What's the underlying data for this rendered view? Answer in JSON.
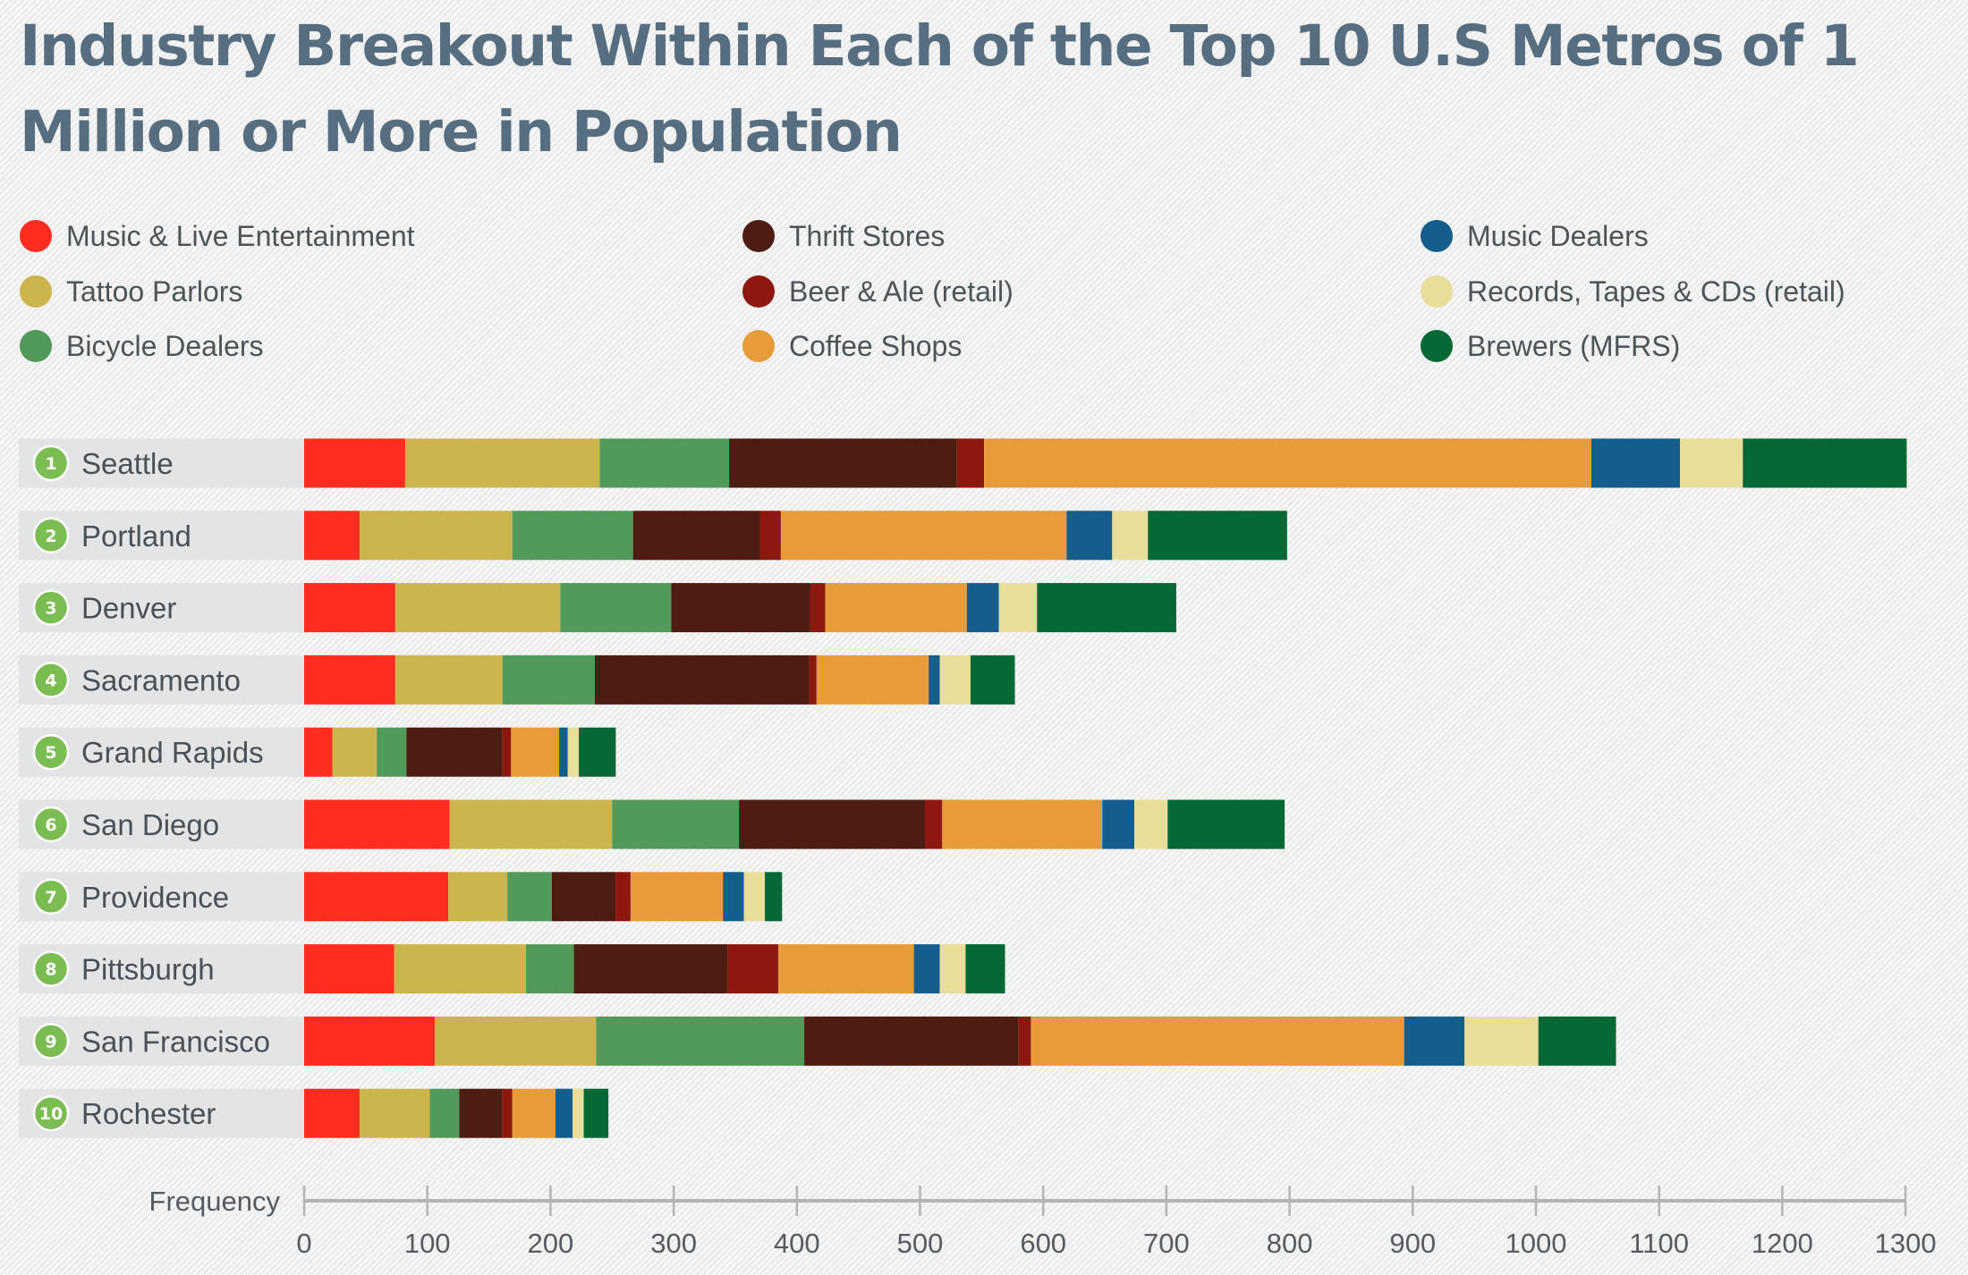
{
  "chart_data": {
    "type": "bar",
    "orientation": "horizontal",
    "stacked": true,
    "title": "Industry Breakout Within Each of the Top 10 U.S Metros of 1 Million or More in Population",
    "xlabel": "Frequency",
    "ylabel": "",
    "xlim": [
      0,
      1300
    ],
    "xticks": [
      0,
      100,
      200,
      300,
      400,
      500,
      600,
      700,
      800,
      900,
      1000,
      1100,
      1200,
      1300
    ],
    "grid": false,
    "legend_position": "top",
    "categories": [
      "Seattle",
      "Portland",
      "Denver",
      "Sacramento",
      "Grand Rapids",
      "San Diego",
      "Providence",
      "Pittsburgh",
      "San Francisco",
      "Rochester"
    ],
    "ranks": [
      "1",
      "2",
      "3",
      "4",
      "5",
      "6",
      "7",
      "8",
      "9",
      "10"
    ],
    "series": [
      {
        "name": "Music & Live Entertainment",
        "color": "#ff2d20",
        "values": [
          82,
          45,
          74,
          74,
          23,
          118,
          117,
          73,
          106,
          45
        ]
      },
      {
        "name": "Tattoo Parlors",
        "color": "#cdb54d",
        "values": [
          158,
          124,
          134,
          87,
          36,
          132,
          48,
          107,
          131,
          57
        ]
      },
      {
        "name": "Bicycle Dealers",
        "color": "#529a5a",
        "values": [
          105,
          98,
          90,
          75,
          24,
          103,
          36,
          39,
          169,
          24
        ]
      },
      {
        "name": "Thrift Stores",
        "color": "#4c1d10",
        "values": [
          185,
          103,
          113,
          174,
          78,
          151,
          52,
          125,
          174,
          35
        ]
      },
      {
        "name": "Beer & Ale (retail)",
        "color": "#8c1810",
        "values": [
          22,
          17,
          12,
          6,
          7,
          14,
          12,
          41,
          10,
          8
        ]
      },
      {
        "name": "Coffee Shops",
        "color": "#e89b3a",
        "values": [
          493,
          232,
          115,
          91,
          39,
          130,
          75,
          110,
          303,
          35
        ]
      },
      {
        "name": "Music Dealers",
        "color": "#135e8c",
        "values": [
          72,
          37,
          26,
          9,
          7,
          26,
          17,
          21,
          49,
          14
        ]
      },
      {
        "name": "Records, Tapes & CDs (retail)",
        "color": "#e8de9a",
        "values": [
          51,
          29,
          31,
          25,
          9,
          27,
          17,
          21,
          60,
          9
        ]
      },
      {
        "name": "Brewers (MFRS)",
        "color": "#066834",
        "values": [
          133,
          113,
          113,
          36,
          30,
          95,
          14,
          32,
          63,
          20
        ]
      }
    ]
  },
  "colors": {
    "title": "#566e80",
    "label_background": "#e3e4e6",
    "rank_badge": "#7bbd52",
    "axis": "#b4b4b4",
    "text": "#4d5458"
  }
}
